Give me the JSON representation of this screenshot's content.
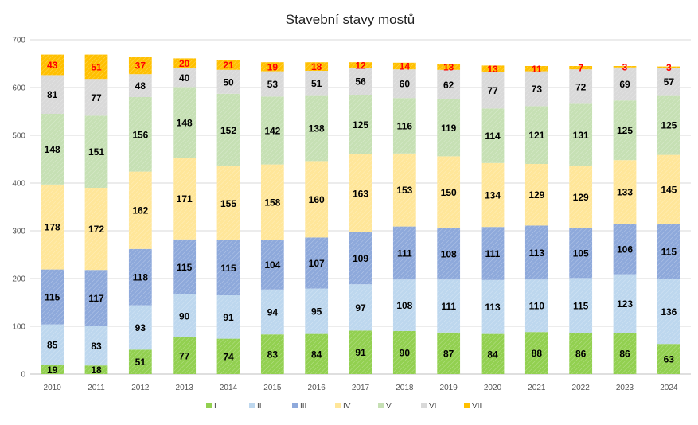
{
  "chart_data": {
    "type": "bar",
    "stacked": true,
    "title": "Stavební stavy mostů",
    "xlabel": "",
    "ylabel": "",
    "ylim": [
      0,
      700
    ],
    "yticks": [
      "0",
      "100",
      "200",
      "300",
      "400",
      "500",
      "600",
      "700"
    ],
    "grid": true,
    "legend_position": "bottom",
    "categories": [
      "2010",
      "2011",
      "2012",
      "2013",
      "2014",
      "2015",
      "2016",
      "2017",
      "2018",
      "2019",
      "2020",
      "2021",
      "2022",
      "2023",
      "2024"
    ],
    "series": [
      {
        "name": "I",
        "color": "#92d050",
        "label_color": "#000000",
        "values": [
          19,
          18,
          51,
          77,
          74,
          83,
          84,
          91,
          90,
          87,
          84,
          88,
          86,
          86,
          63
        ]
      },
      {
        "name": "II",
        "color": "#bdd7ee",
        "label_color": "#000000",
        "values": [
          85,
          83,
          93,
          90,
          91,
          94,
          95,
          97,
          108,
          111,
          113,
          110,
          115,
          123,
          136
        ]
      },
      {
        "name": "III",
        "color": "#8ea9db",
        "label_color": "#000000",
        "values": [
          115,
          117,
          118,
          115,
          115,
          104,
          107,
          109,
          111,
          108,
          111,
          113,
          105,
          106,
          115
        ]
      },
      {
        "name": "IV",
        "color": "#ffe699",
        "label_color": "#000000",
        "values": [
          178,
          172,
          162,
          171,
          155,
          158,
          160,
          163,
          153,
          150,
          134,
          129,
          129,
          133,
          145
        ]
      },
      {
        "name": "V",
        "color": "#c6e0b4",
        "label_color": "#000000",
        "values": [
          148,
          151,
          156,
          148,
          152,
          142,
          138,
          125,
          116,
          119,
          114,
          121,
          131,
          125,
          125
        ]
      },
      {
        "name": "VI",
        "color": "#d9d9d9",
        "label_color": "#000000",
        "values": [
          81,
          77,
          48,
          40,
          50,
          53,
          51,
          56,
          60,
          62,
          77,
          73,
          72,
          69,
          57
        ]
      },
      {
        "name": "VII",
        "color": "#ffc000",
        "label_color": "#ff0000",
        "values": [
          43,
          51,
          37,
          20,
          21,
          19,
          18,
          12,
          14,
          13,
          13,
          11,
          7,
          3,
          3
        ]
      }
    ]
  },
  "colors": {
    "gridline": "#d9d9d9",
    "axis": "#bfbfbf",
    "hatch": "#ffffff"
  }
}
